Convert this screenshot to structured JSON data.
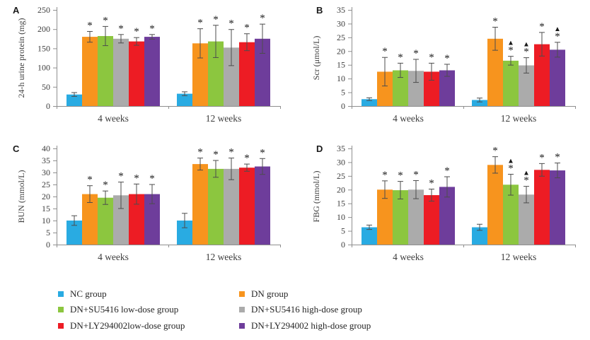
{
  "legend": {
    "items": [
      {
        "label": "NC group",
        "color": "#29abe2"
      },
      {
        "label": "DN group",
        "color": "#f7941e"
      },
      {
        "label": "DN+SU5416 low-dose group",
        "color": "#8cc63f"
      },
      {
        "label": "DN+SU5416 high-dose group",
        "color": "#ababab"
      },
      {
        "label": "DN+LY294002low-dose group",
        "color": "#ed1c24"
      },
      {
        "label": "DN+LY294002 high-dose group",
        "color": "#6e3d9b"
      }
    ]
  },
  "chart_data": [
    {
      "type": "bar",
      "panel": "A",
      "ylabel": "24-h urine protein (mg)",
      "ylim": [
        0,
        250
      ],
      "yticks": [
        0,
        50,
        100,
        150,
        200,
        250
      ],
      "categories": [
        "4 weeks",
        "12 weeks"
      ],
      "legend_position": "bottom",
      "grid": false,
      "series": [
        {
          "name": "NC group",
          "values": [
            30,
            32
          ],
          "errors": [
            5,
            5
          ],
          "sig": [
            "",
            ""
          ]
        },
        {
          "name": "DN group",
          "values": [
            180,
            163
          ],
          "errors": [
            14,
            38
          ],
          "sig": [
            "*",
            "*"
          ]
        },
        {
          "name": "DN+SU5416 low-dose group",
          "values": [
            182,
            168
          ],
          "errors": [
            25,
            42
          ],
          "sig": [
            "*",
            "*"
          ]
        },
        {
          "name": "DN+SU5416 high-dose group",
          "values": [
            175,
            152
          ],
          "errors": [
            11,
            47
          ],
          "sig": [
            "*",
            "*"
          ]
        },
        {
          "name": "DN+LY294002low-dose group",
          "values": [
            168,
            166
          ],
          "errors": [
            10,
            22
          ],
          "sig": [
            "*",
            "*"
          ]
        },
        {
          "name": "DN+LY294002 high-dose group",
          "values": [
            180,
            175
          ],
          "errors": [
            6,
            38
          ],
          "sig": [
            "*",
            "*"
          ]
        }
      ]
    },
    {
      "type": "bar",
      "panel": "B",
      "ylabel": "Scr (μmol/L)",
      "ylim": [
        0,
        35
      ],
      "yticks": [
        0,
        5,
        10,
        15,
        20,
        25,
        30,
        35
      ],
      "categories": [
        "4 weeks",
        "12 weeks"
      ],
      "legend_position": "bottom",
      "grid": false,
      "series": [
        {
          "name": "NC group",
          "values": [
            2.5,
            2.2
          ],
          "errors": [
            0.5,
            0.7
          ],
          "sig": [
            "",
            ""
          ]
        },
        {
          "name": "DN group",
          "values": [
            12.5,
            24.5
          ],
          "errors": [
            5.2,
            4.2
          ],
          "sig": [
            "*",
            "*"
          ]
        },
        {
          "name": "DN+SU5416 low-dose group",
          "values": [
            13,
            16.5
          ],
          "errors": [
            2.6,
            1.6
          ],
          "sig": [
            "*",
            "*▲"
          ]
        },
        {
          "name": "DN+SU5416 high-dose group",
          "values": [
            12.8,
            14.8
          ],
          "errors": [
            4.2,
            2.8
          ],
          "sig": [
            "*",
            "*▲"
          ]
        },
        {
          "name": "DN+LY294002low-dose group",
          "values": [
            12.5,
            22.5
          ],
          "errors": [
            3.1,
            4.3
          ],
          "sig": [
            "*",
            "*"
          ]
        },
        {
          "name": "DN+LY294002 high-dose group",
          "values": [
            13,
            20.5
          ],
          "errors": [
            2.2,
            2.7
          ],
          "sig": [
            "*",
            "*▲"
          ]
        }
      ]
    },
    {
      "type": "bar",
      "panel": "C",
      "ylabel": "BUN (mmol/L)",
      "ylim": [
        0,
        40
      ],
      "yticks": [
        0,
        5,
        10,
        15,
        20,
        25,
        30,
        35,
        40
      ],
      "categories": [
        "4 weeks",
        "12 weeks"
      ],
      "legend_position": "bottom",
      "grid": false,
      "series": [
        {
          "name": "NC group",
          "values": [
            10,
            10
          ],
          "errors": [
            2,
            3
          ],
          "sig": [
            "",
            ""
          ]
        },
        {
          "name": "DN group",
          "values": [
            21,
            33.5
          ],
          "errors": [
            3.5,
            2.5
          ],
          "sig": [
            "*",
            "*"
          ]
        },
        {
          "name": "DN+SU5416 low-dose group",
          "values": [
            19.5,
            31.5
          ],
          "errors": [
            2.8,
            3.5
          ],
          "sig": [
            "*",
            "*"
          ]
        },
        {
          "name": "DN+SU5416 high-dose group",
          "values": [
            20.5,
            31.5
          ],
          "errors": [
            5.5,
            4.5
          ],
          "sig": [
            "*",
            "*"
          ]
        },
        {
          "name": "DN+LY294002low-dose group",
          "values": [
            21,
            32
          ],
          "errors": [
            4.2,
            1.5
          ],
          "sig": [
            "*",
            "*"
          ]
        },
        {
          "name": "DN+LY294002 high-dose group",
          "values": [
            21,
            32.5
          ],
          "errors": [
            4,
            3.3
          ],
          "sig": [
            "*",
            "*"
          ]
        }
      ]
    },
    {
      "type": "bar",
      "panel": "D",
      "ylabel": "FBG (mmol/L)",
      "ylim": [
        0,
        35
      ],
      "yticks": [
        0,
        5,
        10,
        15,
        20,
        25,
        30,
        35
      ],
      "categories": [
        "4 weeks",
        "12 weeks"
      ],
      "legend_position": "bottom",
      "grid": false,
      "series": [
        {
          "name": "NC group",
          "values": [
            6.3,
            6.3
          ],
          "errors": [
            0.8,
            1.1
          ],
          "sig": [
            "",
            ""
          ]
        },
        {
          "name": "DN group",
          "values": [
            20,
            29
          ],
          "errors": [
            3.2,
            3
          ],
          "sig": [
            "*",
            "*"
          ]
        },
        {
          "name": "DN+SU5416 low-dose group",
          "values": [
            19.8,
            21.8
          ],
          "errors": [
            3.2,
            3.8
          ],
          "sig": [
            "*",
            "*▲"
          ]
        },
        {
          "name": "DN+SU5416 high-dose group",
          "values": [
            20,
            18.2
          ],
          "errors": [
            3.3,
            3
          ],
          "sig": [
            "*",
            "*▲"
          ]
        },
        {
          "name": "DN+LY294002low-dose group",
          "values": [
            18,
            27.2
          ],
          "errors": [
            2.2,
            2.3
          ],
          "sig": [
            "*",
            "*"
          ]
        },
        {
          "name": "DN+LY294002 high-dose group",
          "values": [
            21,
            27
          ],
          "errors": [
            3.7,
            2.7
          ],
          "sig": [
            "*",
            "*"
          ]
        }
      ]
    }
  ]
}
